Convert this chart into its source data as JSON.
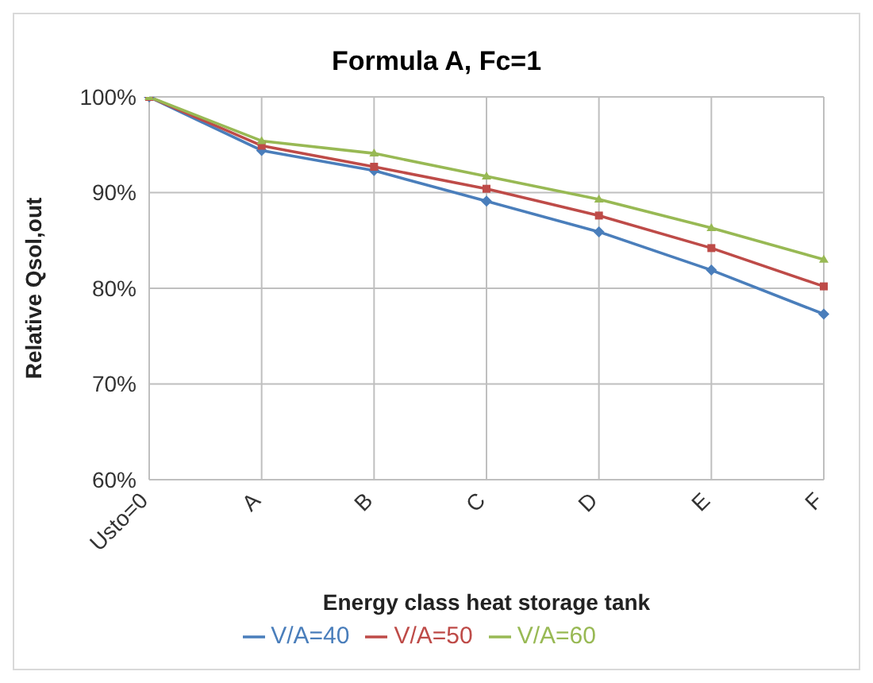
{
  "chart_data": {
    "type": "line",
    "title": "Formula A, Fc=1",
    "xlabel": "Energy class heat storage tank",
    "ylabel": "Relative Qsol,out",
    "categories": [
      "Usto=0",
      "A",
      "B",
      "C",
      "D",
      "E",
      "F"
    ],
    "series": [
      {
        "name": "V/A=40",
        "color": "#4a7ebb",
        "marker": "diamond",
        "values": [
          100,
          94.4,
          92.3,
          89.1,
          85.9,
          81.9,
          77.3
        ]
      },
      {
        "name": "V/A=50",
        "color": "#be4b48",
        "marker": "square",
        "values": [
          100,
          94.9,
          92.7,
          90.4,
          87.6,
          84.2,
          80.2
        ]
      },
      {
        "name": "V/A=60",
        "color": "#98b954",
        "marker": "triangle",
        "values": [
          100,
          95.4,
          94.1,
          91.7,
          89.3,
          86.3,
          83
        ]
      }
    ],
    "ylim": [
      60,
      100
    ],
    "yticks": [
      {
        "value": 60,
        "label": "60%"
      },
      {
        "value": 70,
        "label": "70%"
      },
      {
        "value": 80,
        "label": "80%"
      },
      {
        "value": 90,
        "label": "90%"
      },
      {
        "value": 100,
        "label": "100%"
      }
    ],
    "grid": true,
    "legend": "bottom",
    "line_style": "solid"
  }
}
